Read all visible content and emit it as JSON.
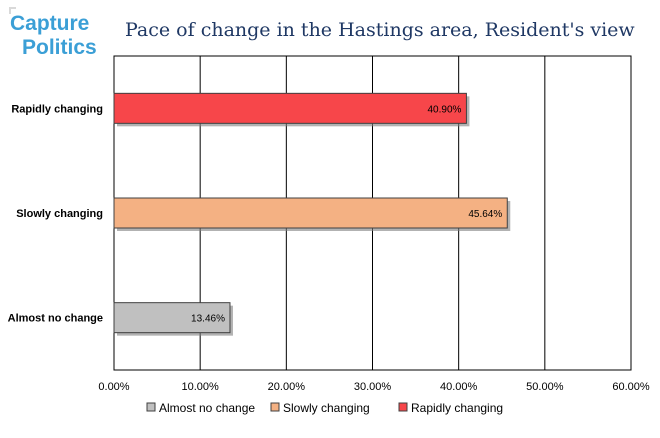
{
  "logo": {
    "line1": "Capture",
    "line2": "Politics"
  },
  "chart_data": {
    "type": "bar",
    "orientation": "horizontal",
    "title": "Pace of change in the Hastings area, Resident's view",
    "categories": [
      "Rapidly changing",
      "Slowly changing",
      "Almost no change"
    ],
    "values": [
      40.9,
      45.64,
      13.46
    ],
    "value_labels": [
      "40.90%",
      "45.64%",
      "13.46%"
    ],
    "colors": [
      "#f7464a",
      "#f4b183",
      "#c0c0c0"
    ],
    "xlim": [
      0,
      60
    ],
    "ticks": [
      0,
      10,
      20,
      30,
      40,
      50,
      60
    ],
    "tick_labels": [
      "0.00%",
      "10.00%",
      "20.00%",
      "30.00%",
      "40.00%",
      "50.00%",
      "60.00%"
    ],
    "grid": true,
    "legend_position": "bottom",
    "legend": [
      {
        "label": "Almost no change",
        "color": "#c0c0c0"
      },
      {
        "label": "Slowly changing",
        "color": "#f4b183"
      },
      {
        "label": "Rapidly changing",
        "color": "#f7464a"
      }
    ]
  }
}
